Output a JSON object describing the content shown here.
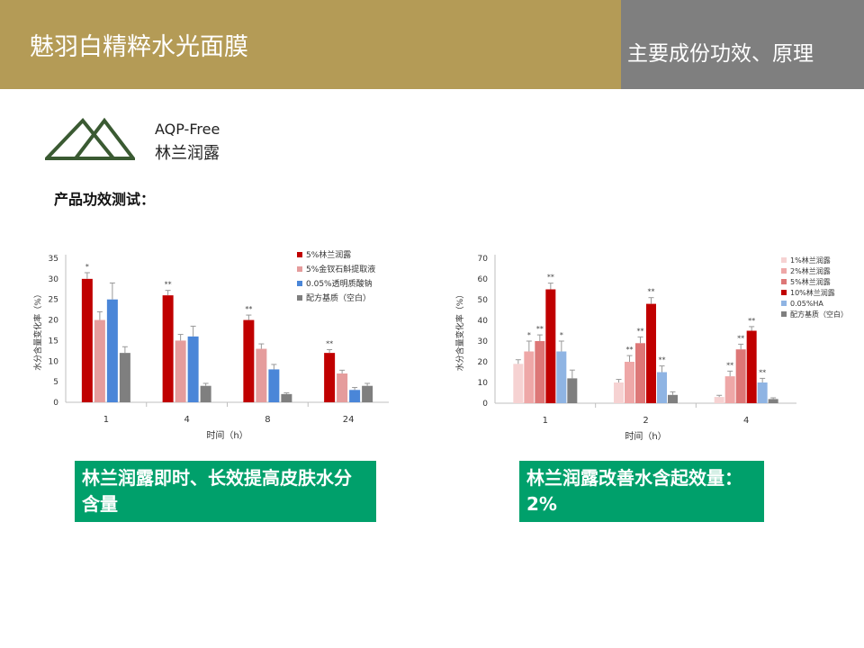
{
  "header": {
    "title": "魅羽白精粹水光面膜",
    "subtitle": "主要成份功效、原理"
  },
  "logo": {
    "line1": "AQP-Free",
    "line2": "林兰润露"
  },
  "section_title": "产品功效测试：",
  "colors": {
    "header_gold": "#b49b56",
    "header_gray": "#7f7f7f",
    "accent_green": "#00a06b",
    "logo_green": "#3a5a32"
  },
  "chart_data": [
    {
      "type": "bar",
      "xlabel": "时间（h）",
      "ylabel": "水分含量变化率（%）",
      "ylim": [
        0,
        35
      ],
      "yticks": [
        0,
        5,
        10,
        15,
        20,
        25,
        30,
        35
      ],
      "categories": [
        "1",
        "4",
        "8",
        "24"
      ],
      "legend_position": "top-right",
      "series": [
        {
          "name": "5%林兰润露",
          "color": "#c00000",
          "values": [
            30,
            26,
            20,
            12
          ],
          "errors": [
            1.5,
            1.2,
            1.2,
            0.8
          ],
          "marks": [
            "*",
            "**",
            "**",
            "**"
          ]
        },
        {
          "name": "5%金钗石斛提取液",
          "color": "#e59c9c",
          "values": [
            20,
            15,
            13,
            7
          ],
          "errors": [
            2,
            1.5,
            1.2,
            0.8
          ],
          "marks": [
            "",
            "",
            "",
            ""
          ]
        },
        {
          "name": "0.05%透明质酸钠",
          "color": "#4a86d8",
          "values": [
            25,
            16,
            8,
            3
          ],
          "errors": [
            4,
            2.5,
            1.2,
            0.6
          ],
          "marks": [
            "",
            "",
            "",
            ""
          ]
        },
        {
          "name": "配方基质（空白）",
          "color": "#7f7f7f",
          "values": [
            12,
            4,
            2,
            4
          ],
          "errors": [
            1.5,
            0.6,
            0.3,
            0.6
          ],
          "marks": [
            "",
            "",
            "",
            ""
          ]
        }
      ]
    },
    {
      "type": "bar",
      "xlabel": "时间（h）",
      "ylabel": "水分含量变化率（%）",
      "ylim": [
        0,
        70
      ],
      "yticks": [
        0,
        10,
        20,
        30,
        40,
        50,
        60,
        70
      ],
      "categories": [
        "1",
        "2",
        "4"
      ],
      "legend_position": "top-right",
      "series": [
        {
          "name": "1%林兰润露",
          "color": "#f6d2d2",
          "values": [
            19,
            10,
            3
          ],
          "errors": [
            2,
            1.5,
            0.8
          ],
          "marks": [
            "",
            "",
            ""
          ]
        },
        {
          "name": "2%林兰润露",
          "color": "#eea7a7",
          "values": [
            25,
            20,
            13
          ],
          "errors": [
            5,
            3,
            2.5
          ],
          "marks": [
            "*",
            "**",
            "**"
          ]
        },
        {
          "name": "5%林兰润露",
          "color": "#dd7777",
          "values": [
            30,
            29,
            26
          ],
          "errors": [
            3,
            3,
            2.5
          ],
          "marks": [
            "**",
            "**",
            "**"
          ]
        },
        {
          "name": "10%林兰润露",
          "color": "#c00000",
          "values": [
            55,
            48,
            35
          ],
          "errors": [
            3,
            3,
            2
          ],
          "marks": [
            "**",
            "**",
            "**"
          ]
        },
        {
          "name": "0.05%HA",
          "color": "#8fb4e3",
          "values": [
            25,
            15,
            10
          ],
          "errors": [
            5,
            3,
            2
          ],
          "marks": [
            "*",
            "**",
            "**"
          ]
        },
        {
          "name": "配方基质（空白）",
          "color": "#7f7f7f",
          "values": [
            12,
            4,
            2
          ],
          "errors": [
            4,
            1.5,
            0.6
          ],
          "marks": [
            "",
            "",
            ""
          ]
        }
      ]
    }
  ],
  "conclusions": [
    "林兰润露即时、长效提高皮肤水分含量",
    "林兰润露改善水含起效量：2%"
  ]
}
